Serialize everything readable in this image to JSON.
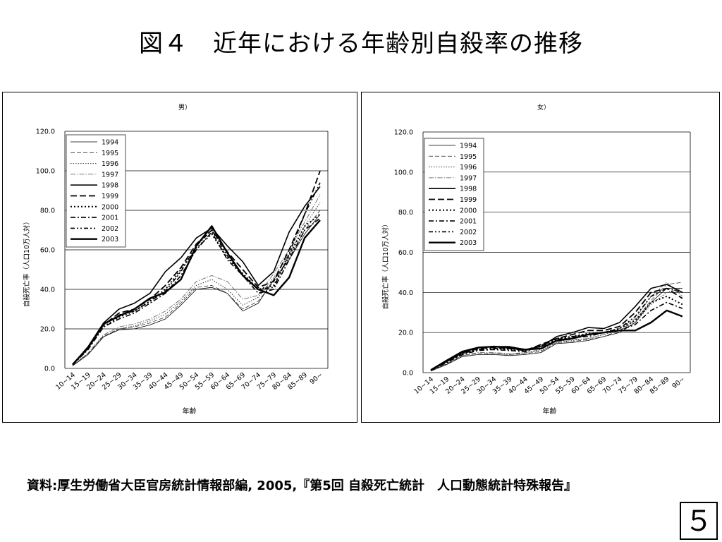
{
  "slide": {
    "title": "図４　近年における年齢別自殺率の推移",
    "source": "資料:厚生労働省大臣官房統計情報部編, 2005,『第5回 自殺死亡統計　人口動態統計特殊報告』",
    "page_number": "５"
  },
  "chart_data": [
    {
      "type": "line",
      "title": "男）",
      "xlabel": "年齢",
      "ylabel": "自殺死亡率（人口10万人対）",
      "ylim": [
        0,
        120
      ],
      "yticks": [
        "0.0",
        "20.0",
        "40.0",
        "60.0",
        "80.0",
        "100.0",
        "120.0"
      ],
      "grid": true,
      "legend_position": "top-left",
      "categories": [
        "10~14",
        "15~19",
        "20~24",
        "25~29",
        "30~34",
        "35~39",
        "40~44",
        "45~49",
        "50~54",
        "55~59",
        "60~64",
        "65~69",
        "70~74",
        "75~79",
        "80~84",
        "85~89",
        "90~"
      ],
      "series": [
        {
          "name": "1994",
          "values": [
            1.3,
            7.0,
            16.0,
            19.5,
            20.0,
            22.0,
            25.0,
            32.0,
            40.0,
            41.0,
            38.0,
            29.0,
            33.0,
            45.0,
            55.0,
            68.0,
            78.0
          ]
        },
        {
          "name": "1995",
          "values": [
            1.4,
            7.5,
            16.5,
            20.0,
            21.0,
            23.0,
            26.0,
            33.0,
            41.0,
            42.0,
            38.0,
            30.0,
            34.0,
            44.0,
            56.0,
            70.0,
            80.0
          ]
        },
        {
          "name": "1996",
          "values": [
            1.4,
            7.2,
            16.0,
            20.0,
            21.5,
            24.0,
            27.5,
            34.0,
            42.0,
            45.0,
            40.0,
            32.0,
            36.0,
            46.0,
            58.0,
            72.0,
            84.0
          ]
        },
        {
          "name": "1997",
          "values": [
            1.5,
            7.8,
            17.0,
            21.0,
            22.5,
            25.0,
            29.0,
            35.0,
            44.0,
            47.0,
            44.0,
            35.0,
            37.0,
            48.0,
            60.0,
            74.0,
            88.0
          ]
        },
        {
          "name": "1998",
          "values": [
            2.0,
            11.0,
            23.0,
            30.0,
            33.0,
            38.0,
            49.0,
            56.0,
            66.0,
            71.0,
            62.0,
            54.0,
            42.0,
            49.0,
            69.0,
            82.0,
            92.0
          ]
        },
        {
          "name": "1999",
          "values": [
            2.0,
            10.5,
            22.0,
            28.0,
            30.0,
            35.0,
            42.0,
            51.0,
            63.0,
            70.0,
            59.0,
            50.0,
            41.0,
            44.0,
            60.0,
            78.0,
            100.0
          ]
        },
        {
          "name": "2000",
          "values": [
            1.9,
            10.0,
            21.0,
            26.0,
            29.0,
            34.0,
            40.0,
            50.0,
            61.0,
            68.0,
            56.0,
            48.0,
            40.0,
            42.0,
            57.0,
            72.0,
            78.0
          ]
        },
        {
          "name": "2001",
          "values": [
            1.8,
            9.5,
            21.0,
            25.0,
            28.0,
            33.0,
            38.0,
            47.0,
            60.0,
            69.0,
            55.0,
            47.0,
            38.0,
            40.0,
            55.0,
            70.0,
            76.0
          ]
        },
        {
          "name": "2002",
          "values": [
            1.9,
            10.0,
            22.0,
            27.0,
            29.0,
            34.0,
            39.0,
            49.0,
            62.0,
            70.0,
            57.0,
            47.0,
            40.0,
            41.0,
            58.0,
            78.0,
            94.0
          ]
        },
        {
          "name": "2003",
          "values": [
            2.0,
            10.5,
            22.5,
            26.5,
            30.0,
            35.5,
            38.5,
            45.0,
            62.0,
            72.0,
            58.5,
            47.0,
            40.0,
            37.0,
            46.0,
            66.0,
            75.0
          ]
        }
      ]
    },
    {
      "type": "line",
      "title": "女）",
      "xlabel": "年齢",
      "ylabel": "自殺死亡率（人口10万人対）",
      "ylim": [
        0,
        120
      ],
      "yticks": [
        "0.0",
        "20.0",
        "40.0",
        "60.0",
        "80.0",
        "100.0",
        "120.0"
      ],
      "grid": true,
      "legend_position": "top-left",
      "categories": [
        "10~14",
        "15~19",
        "20~24",
        "25~29",
        "30~34",
        "35~39",
        "40~44",
        "45~49",
        "50~54",
        "55~59",
        "60~64",
        "65~69",
        "70~74",
        "75~79",
        "80~84",
        "85~89",
        "90~"
      ],
      "series": [
        {
          "name": "1994",
          "values": [
            0.8,
            4.0,
            8.0,
            9.0,
            9.0,
            8.5,
            9.0,
            10.0,
            14.5,
            15.0,
            16.0,
            18.0,
            20.0,
            25.0,
            35.0,
            42.0,
            42.0
          ]
        },
        {
          "name": "1995",
          "values": [
            0.8,
            4.2,
            8.5,
            9.5,
            9.5,
            9.0,
            9.5,
            10.5,
            15.0,
            15.5,
            16.5,
            18.0,
            21.0,
            26.0,
            36.0,
            44.0,
            45.0
          ]
        },
        {
          "name": "1996",
          "values": [
            0.8,
            4.0,
            8.0,
            9.0,
            9.5,
            9.0,
            10.0,
            11.0,
            15.0,
            16.0,
            17.0,
            19.0,
            21.0,
            25.0,
            34.0,
            40.0,
            42.0
          ]
        },
        {
          "name": "1997",
          "values": [
            0.9,
            4.5,
            8.5,
            10.0,
            10.0,
            9.5,
            10.0,
            11.5,
            15.5,
            16.5,
            17.0,
            19.0,
            22.0,
            27.0,
            38.0,
            45.0,
            38.0
          ]
        },
        {
          "name": "1998",
          "values": [
            1.2,
            5.5,
            10.0,
            12.5,
            13.0,
            13.0,
            11.5,
            13.0,
            18.0,
            20.0,
            22.5,
            22.0,
            25.0,
            33.0,
            42.0,
            44.0,
            40.0
          ]
        },
        {
          "name": "1999",
          "values": [
            1.2,
            5.5,
            10.0,
            12.0,
            12.5,
            12.0,
            11.0,
            14.0,
            17.0,
            19.0,
            21.0,
            21.0,
            23.0,
            30.0,
            40.0,
            42.0,
            37.0
          ]
        },
        {
          "name": "2000",
          "values": [
            1.1,
            5.0,
            9.5,
            11.5,
            12.0,
            11.5,
            11.0,
            13.5,
            17.0,
            18.0,
            19.5,
            20.0,
            22.0,
            26.0,
            35.0,
            38.0,
            34.0
          ]
        },
        {
          "name": "2001",
          "values": [
            1.1,
            5.0,
            9.0,
            11.0,
            11.5,
            11.0,
            10.5,
            13.0,
            16.0,
            17.5,
            18.0,
            20.0,
            21.0,
            24.0,
            31.0,
            35.0,
            32.0
          ]
        },
        {
          "name": "2002",
          "values": [
            1.2,
            5.5,
            9.5,
            11.5,
            12.0,
            12.0,
            11.0,
            13.5,
            16.5,
            18.0,
            19.0,
            20.0,
            22.0,
            28.0,
            38.0,
            42.0,
            40.0
          ]
        },
        {
          "name": "2003",
          "values": [
            1.3,
            6.0,
            10.5,
            12.5,
            13.0,
            12.5,
            11.5,
            12.0,
            16.0,
            17.0,
            19.0,
            20.0,
            21.0,
            21.0,
            25.0,
            31.0,
            28.0
          ]
        }
      ]
    }
  ]
}
